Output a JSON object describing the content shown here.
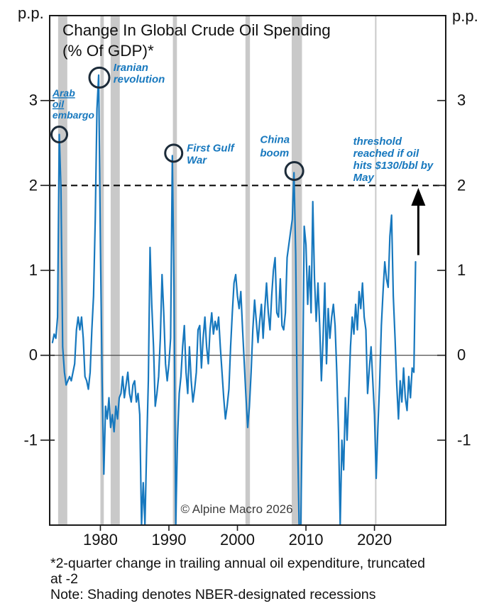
{
  "chart_data": {
    "type": "line",
    "title_lines": [
      "Change In Global Crude Oil Spending",
      "(% Of GDP)*"
    ],
    "unit_labels": {
      "left": "p.p.",
      "right": "p.p."
    },
    "xlim": [
      1972.6,
      2030.4
    ],
    "ylim": [
      -2,
      4
    ],
    "x_ticks": [
      1980,
      1990,
      2000,
      2010,
      2020
    ],
    "y_ticks": [
      3,
      2,
      1,
      0,
      -1
    ],
    "grid": false,
    "threshold_value": 2,
    "zero_line": 0,
    "series": [
      {
        "name": "2-quarter change in trailing annual oil expenditure (p.p. of GDP)",
        "start_year": 1973.0,
        "step_years": 0.25,
        "values": [
          0.15,
          0.25,
          0.2,
          0.45,
          2.6,
          1.95,
          0.1,
          -0.2,
          -0.35,
          -0.3,
          -0.25,
          -0.3,
          -0.2,
          -0.1,
          0.3,
          0.45,
          0.3,
          0.45,
          0.2,
          -0.25,
          -0.3,
          -0.4,
          -0.2,
          0.3,
          0.7,
          1.6,
          2.9,
          3.3,
          1.35,
          -0.3,
          -1.4,
          -0.6,
          -0.75,
          -0.5,
          -0.85,
          -0.7,
          -0.9,
          -0.6,
          -0.75,
          -0.5,
          -0.45,
          -0.25,
          -0.5,
          -0.35,
          -0.2,
          -0.45,
          -0.55,
          -0.35,
          -0.3,
          -0.55,
          -0.45,
          -0.7,
          -2,
          -1.5,
          -2,
          -1.1,
          -0.3,
          1.27,
          0.6,
          0.1,
          -0.6,
          -0.45,
          -0.25,
          0.2,
          0.95,
          0.5,
          -0.1,
          -0.3,
          -0.1,
          0.2,
          2.35,
          0.8,
          -2,
          -1.0,
          -0.45,
          -0.25,
          0.1,
          0.35,
          -0.2,
          -0.45,
          0.1,
          -0.3,
          -0.55,
          -0.4,
          -0.2,
          0.3,
          0.35,
          -0.15,
          0.2,
          0.45,
          0.1,
          -0.1,
          0.3,
          0.5,
          0.25,
          0.4,
          0.3,
          0.45,
          0.1,
          -0.2,
          -0.5,
          -0.75,
          -0.6,
          -0.4,
          0.1,
          0.5,
          0.85,
          0.95,
          0.7,
          0.55,
          0.75,
          0.3,
          -0.1,
          -0.5,
          -0.85,
          -0.6,
          -0.2,
          0.3,
          0.65,
          0.4,
          0.15,
          0.4,
          0.6,
          0.2,
          0.55,
          0.85,
          0.5,
          0.3,
          0.7,
          1.0,
          1.15,
          0.5,
          0.45,
          0.9,
          0.35,
          0.3,
          0.5,
          1.15,
          1.3,
          1.45,
          1.6,
          2.15,
          1.2,
          -0.8,
          -2,
          -2,
          -0.5,
          1.52,
          1.3,
          0.6,
          1.05,
          0.5,
          1.81,
          0.9,
          0.4,
          0.85,
          0.35,
          -0.3,
          0.2,
          0.85,
          -0.1,
          0.55,
          0.2,
          0.45,
          0.6,
          0.35,
          -0.2,
          -0.9,
          -2,
          -1.0,
          -1.35,
          -0.5,
          -1.0,
          -0.45,
          0.1,
          0.45,
          0.25,
          0.6,
          0.3,
          0.75,
          0.55,
          0.85,
          0.45,
          0.3,
          -0.45,
          -0.15,
          0.1,
          -0.3,
          -0.7,
          -1.45,
          -0.85,
          -0.35,
          0.35,
          0.75,
          1.1,
          0.9,
          0.8,
          1.4,
          1.65,
          0.7,
          0.2,
          -0.35,
          -0.75,
          -0.3,
          -0.55,
          -0.15,
          -0.5,
          -0.65,
          -0.25,
          -0.5,
          -0.15,
          -0.2,
          1.1
        ]
      }
    ],
    "recession_bands": [
      [
        1973.83,
        1975.17
      ],
      [
        1980.0,
        1980.5
      ],
      [
        1981.5,
        1982.83
      ],
      [
        1990.58,
        1991.17
      ],
      [
        2001.17,
        2001.83
      ],
      [
        2007.92,
        2009.42
      ],
      [
        2020.08,
        2020.25
      ]
    ],
    "annotations": [
      {
        "id": "arab-oil-embargo",
        "lines": [
          "Arab",
          "oil",
          "embargo"
        ],
        "underline": [
          true,
          true,
          false
        ],
        "x_year": 1973.0,
        "y_value": 3.14,
        "font_size": 14,
        "line_height": 15.5,
        "circle": {
          "x_year": 1974.0,
          "y_value": 2.6,
          "r": 11
        }
      },
      {
        "id": "iranian-revolution",
        "lines": [
          "Iranian",
          "revolution"
        ],
        "x_year": 1981.9,
        "y_value": 3.45,
        "font_size": 15,
        "line_height": 16.5,
        "circle": {
          "x_year": 1979.85,
          "y_value": 3.27,
          "r": 14
        }
      },
      {
        "id": "first-gulf-war",
        "lines": [
          "First Gulf",
          "War"
        ],
        "x_year": 1992.6,
        "y_value": 2.5,
        "font_size": 15,
        "line_height": 17,
        "circle": {
          "x_year": 1990.7,
          "y_value": 2.38,
          "r": 12
        }
      },
      {
        "id": "china-boom",
        "lines": [
          "China",
          "boom"
        ],
        "x_year": 2003.3,
        "y_value": 2.6,
        "font_size": 15,
        "line_height": 19,
        "circle": {
          "x_year": 2008.3,
          "y_value": 2.17,
          "r": 12.5
        }
      },
      {
        "id": "threshold-note",
        "lines": [
          "threshold",
          "reached if oil",
          "hits $130/bbl by",
          "May"
        ],
        "x_year": 2016.9,
        "y_value": 2.58,
        "font_size": 15,
        "line_height": 17
      }
    ],
    "arrow": {
      "x_year": 2026.4,
      "from_value": 1.18,
      "to_value": 1.97
    },
    "copyright": "© Alpine Macro 2026",
    "copyright_pos": {
      "x_year": 1999.9,
      "y_value": -1.86
    },
    "colors": {
      "line": "#1778be",
      "annotation": "#1778be",
      "recession_band": "#c9c9c9",
      "circle": "#1c2b39",
      "threshold_line": "#000000",
      "axis": "#1a1a1a",
      "copyright": "#3d3d3d"
    }
  },
  "footnotes": [
    "*2-quarter change in trailing annual oil expenditure, truncated",
    "at -2",
    "Note: Shading denotes NBER-designated recessions"
  ]
}
